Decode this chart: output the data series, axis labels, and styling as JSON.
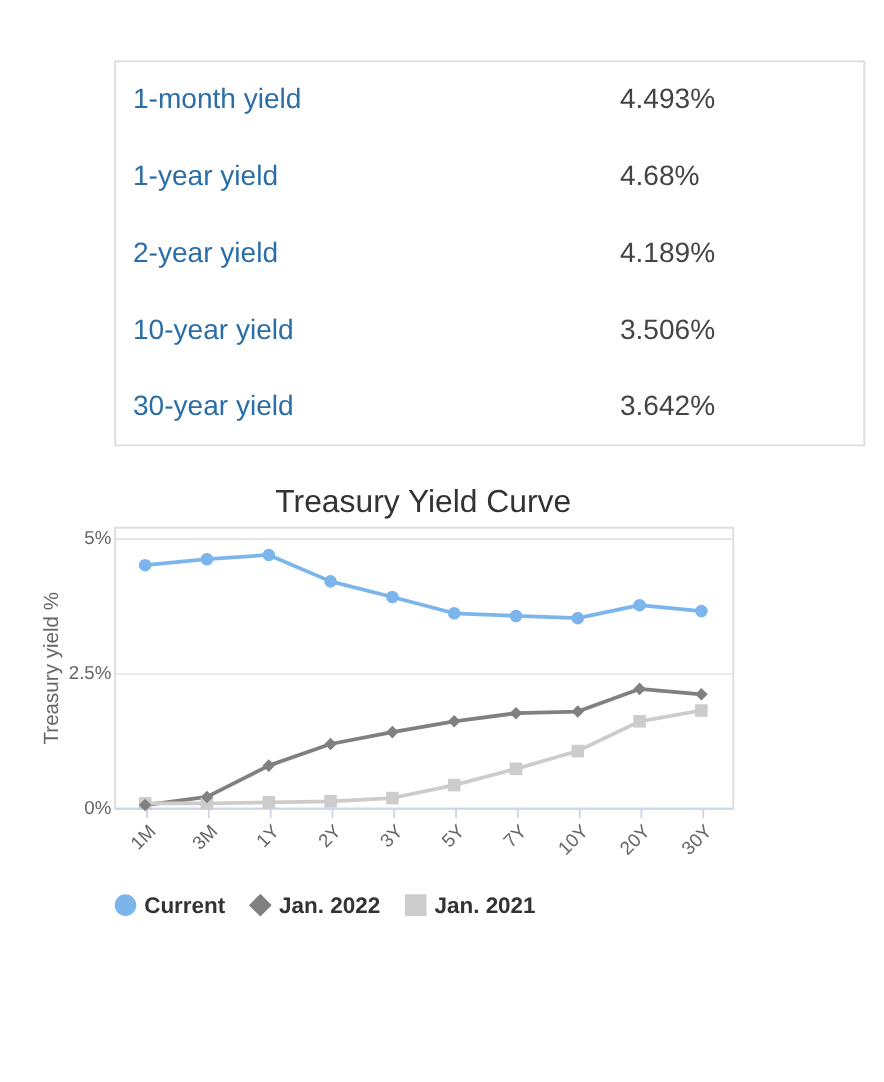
{
  "chart_data": {
    "type": "line",
    "title": "Treasury Yield Curve",
    "ylabel": "Treasury yield %",
    "annotations": [
      "1-month yield",
      "4.493%",
      "1-year yield",
      "4.68%",
      "2-year yield",
      "4.189%",
      "10-year yield",
      "3.506%",
      "30-year yield",
      "3.642%"
    ],
    "categories": [
      "1M",
      "3M",
      "1Y",
      "2Y",
      "3Y",
      "5Y",
      "7Y",
      "10Y",
      "20Y",
      "30Y"
    ],
    "series": [
      {
        "name": "Current",
        "color": "#7cb5ec",
        "marker": "circle",
        "values": [
          4.49,
          4.6,
          4.68,
          4.19,
          3.9,
          3.6,
          3.55,
          3.51,
          3.75,
          3.64
        ]
      },
      {
        "name": "Jan. 2022",
        "color": "#808080",
        "marker": "diamond",
        "values": [
          0.05,
          0.2,
          0.78,
          1.18,
          1.4,
          1.6,
          1.75,
          1.78,
          2.2,
          2.1
        ]
      },
      {
        "name": "Jan. 2021",
        "color": "#cccccc",
        "marker": "square",
        "values": [
          0.08,
          0.08,
          0.1,
          0.12,
          0.18,
          0.42,
          0.72,
          1.05,
          1.6,
          1.8
        ]
      }
    ],
    "ylim": [
      0,
      5.2
    ],
    "yticks": [
      {
        "value": 0,
        "label": "0%"
      },
      {
        "value": 2.5,
        "label": "2.5%"
      },
      {
        "value": 5,
        "label": "5%"
      }
    ],
    "grid": "y",
    "legend": "bottom"
  }
}
